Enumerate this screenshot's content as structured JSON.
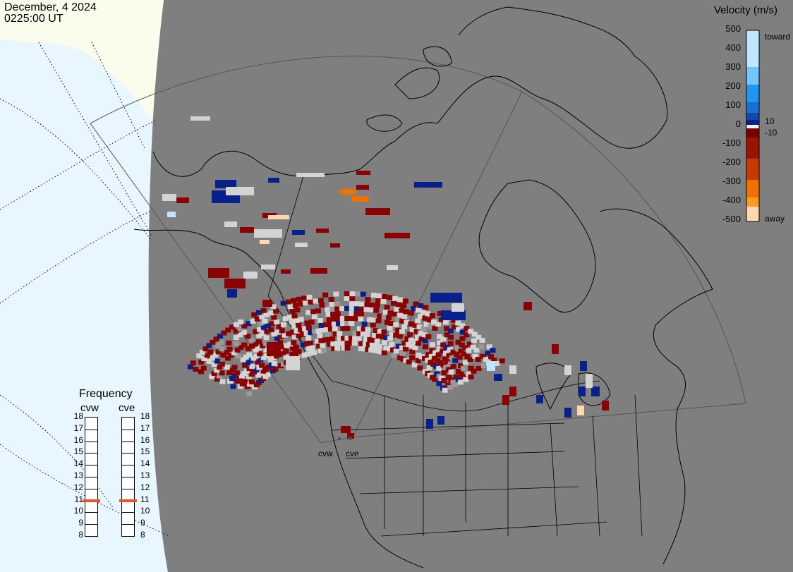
{
  "header": {
    "date": "December, 4 2024",
    "time": "0225:00 UT"
  },
  "colorbar": {
    "title": "Velocity (m/s)",
    "ticks": [
      "500",
      "400",
      "300",
      "200",
      "100",
      "0",
      "-100",
      "-200",
      "-300",
      "-400",
      "-500"
    ],
    "inner_ticks": [
      "10",
      "-10"
    ],
    "toward_label": "toward",
    "away_label": "away",
    "colors": [
      "#bfe6ff",
      "#74c6ff",
      "#1f96f0",
      "#1a6fd6",
      "#104ab0",
      "#08208a",
      "#f0f0f0",
      "#7a0000",
      "#9a1400",
      "#c83a00",
      "#f07000",
      "#ff9a20",
      "#ffd8b0"
    ]
  },
  "frequency": {
    "title": "Frequency",
    "radars": [
      {
        "name": "cvw",
        "value_mhz": 10.9
      },
      {
        "name": "cve",
        "value_mhz": 10.9
      }
    ],
    "scale": [
      "18",
      "17",
      "16",
      "15",
      "14",
      "13",
      "12",
      "11",
      "10",
      "9",
      "8"
    ]
  },
  "sites": [
    {
      "name": "cvw"
    },
    {
      "name": "cve"
    }
  ],
  "colors": {
    "ocean": "#e8f6ff",
    "ice": "#fafcec",
    "land": "#7f7f7f",
    "coast": "#000000",
    "ground_scatter": "#d3d3d3"
  }
}
